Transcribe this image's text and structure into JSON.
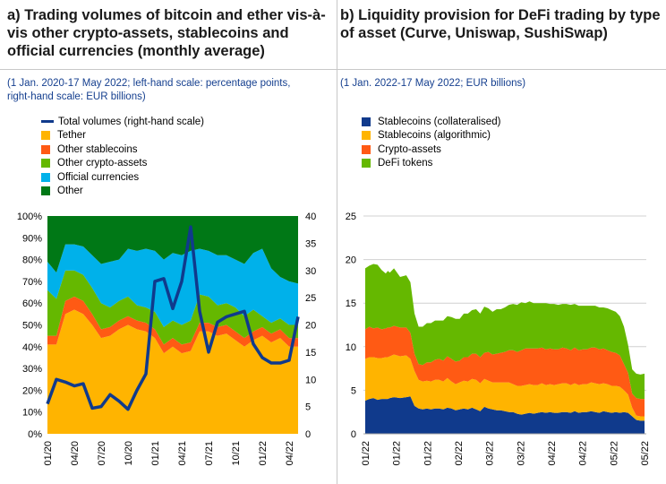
{
  "panels": {
    "a": {
      "title_lines": [
        "a) Trading volumes of bitcoin and ether vis-à-",
        "vis other crypto-assets, stablecoins and",
        "official currencies (monthly average)"
      ],
      "subtitle_lines": [
        "(1 Jan. 2020-17 May 2022; left-hand scale: percentage points,",
        "right-hand scale: EUR billions)"
      ]
    },
    "b": {
      "title_lines": [
        "b) Liquidity provision for DeFi trading by type",
        "of asset (Curve, Uniswap, SushiSwap)"
      ],
      "subtitle_lines": [
        "(1 Jan. 2022-17 May 2022; EUR billions)"
      ]
    }
  },
  "colors": {
    "navy": "#103a8c",
    "tether": "#ffb400",
    "other_stablecoins": "#ff5a14",
    "other_crypto": "#65b800",
    "official": "#00b1ea",
    "other": "#007816",
    "collateralised": "#103a8c",
    "algorithmic": "#ffb400",
    "crypto_assets": "#ff5a14",
    "defi": "#65b800",
    "grid": "#d0d0d0"
  },
  "chart_data": [
    {
      "id": "a",
      "type": "area",
      "stacked": true,
      "title": "a) Trading volumes of bitcoin and ether vis-à-vis other crypto-assets, stablecoins and official currencies (monthly average)",
      "x": [
        "01/20",
        "02/20",
        "03/20",
        "04/20",
        "05/20",
        "06/20",
        "07/20",
        "08/20",
        "09/20",
        "10/20",
        "11/20",
        "12/20",
        "01/21",
        "02/21",
        "03/21",
        "04/21",
        "05/21",
        "06/21",
        "07/21",
        "08/21",
        "09/21",
        "10/21",
        "11/21",
        "12/21",
        "01/22",
        "02/22",
        "03/22",
        "04/22",
        "05/22"
      ],
      "x_tick_labels": [
        "01/20",
        "04/20",
        "07/20",
        "10/20",
        "01/21",
        "04/21",
        "07/21",
        "10/21",
        "01/22",
        "04/22"
      ],
      "y_left": {
        "ylim": [
          0,
          100
        ],
        "ticks": [
          "0%",
          "10%",
          "20%",
          "30%",
          "40%",
          "50%",
          "60%",
          "70%",
          "80%",
          "90%",
          "100%"
        ]
      },
      "y_right": {
        "ylim": [
          0,
          40
        ],
        "ticks": [
          "0",
          "5",
          "10",
          "15",
          "20",
          "25",
          "30",
          "35",
          "40"
        ]
      },
      "series": [
        {
          "name": "Tether",
          "color_key": "tether",
          "values": [
            41,
            41,
            55,
            57,
            55,
            50,
            44,
            45,
            48,
            50,
            48,
            47,
            44,
            37,
            40,
            37,
            38,
            47,
            47,
            45,
            46,
            43,
            40,
            43,
            45,
            42,
            44,
            40,
            40
          ]
        },
        {
          "name": "Other stablecoins",
          "color_key": "other_stablecoins",
          "values": [
            4,
            4,
            6,
            6,
            6,
            5,
            4,
            4,
            4,
            4,
            4,
            4,
            4,
            4,
            4,
            4,
            4,
            4,
            4,
            4,
            4,
            4,
            4,
            4,
            4,
            4,
            4,
            4,
            4
          ]
        },
        {
          "name": "Other crypto-assets",
          "color_key": "other_crypto",
          "values": [
            21,
            17,
            14,
            12,
            12,
            12,
            12,
            9,
            9,
            9,
            7,
            7,
            8,
            8,
            8,
            9,
            10,
            13,
            12,
            10,
            10,
            11,
            10,
            10,
            5,
            5,
            5,
            6,
            6
          ]
        },
        {
          "name": "Official currencies",
          "color_key": "official",
          "values": [
            13,
            12,
            12,
            12,
            13,
            15,
            18,
            21,
            19,
            22,
            25,
            27,
            28,
            31,
            31,
            32,
            32,
            21,
            21,
            23,
            22,
            22,
            24,
            26,
            31,
            25,
            19,
            20,
            19
          ]
        },
        {
          "name": "Other",
          "color_key": "other",
          "values": [
            21,
            26,
            13,
            13,
            14,
            18,
            22,
            21,
            20,
            15,
            16,
            15,
            16,
            20,
            17,
            18,
            16,
            15,
            16,
            18,
            18,
            20,
            22,
            17,
            15,
            24,
            28,
            30,
            31
          ]
        }
      ],
      "line": {
        "name": "Total volumes (right-hand scale)",
        "axis": "right",
        "color_key": "navy",
        "values": [
          5.5,
          10,
          9.5,
          8.8,
          9.2,
          4.7,
          5,
          7.2,
          6,
          4.5,
          8,
          11,
          28,
          28.5,
          23,
          28,
          38,
          22.5,
          15,
          20.5,
          21.5,
          22,
          22.5,
          16.5,
          14,
          13,
          13,
          13.5,
          21.5
        ]
      },
      "legend": [
        "Total volumes (right-hand scale)",
        "Tether",
        "Other stablecoins",
        "Other crypto-assets",
        "Official currencies",
        "Other"
      ]
    },
    {
      "id": "b",
      "type": "area",
      "stacked": true,
      "title": "b) Liquidity provision for DeFi trading by type of asset (Curve, Uniswap, SushiSwap)",
      "x_tick_labels": [
        "01/22",
        "01/22",
        "01/22",
        "02/22",
        "03/22",
        "03/22",
        "04/22",
        "04/22",
        "05/22",
        "05/22"
      ],
      "ylim": [
        0,
        25
      ],
      "y_ticks": [
        "0",
        "5",
        "10",
        "15",
        "20",
        "25"
      ],
      "t": [
        0,
        2,
        4,
        6,
        8,
        10,
        11,
        12,
        14,
        17,
        20,
        22,
        24,
        26,
        28,
        30,
        32,
        34,
        36,
        38,
        40,
        42,
        44,
        46,
        48,
        50,
        52,
        54,
        56,
        58,
        60,
        62,
        64,
        66,
        68,
        70,
        72,
        74,
        76,
        78,
        80,
        82,
        84,
        86,
        88,
        90,
        92,
        94,
        96,
        98,
        100,
        102,
        104,
        106,
        108,
        110,
        112,
        114,
        116,
        118,
        120,
        122,
        124,
        126,
        128,
        130,
        132,
        134,
        136
      ],
      "series": [
        {
          "name": "Stablecoins (collateralised)",
          "color_key": "collateralised",
          "values": [
            3.8,
            4.0,
            4.1,
            3.9,
            4.0,
            4.0,
            4.0,
            4.1,
            4.2,
            4.1,
            4.2,
            4.3,
            3.2,
            2.9,
            2.8,
            2.9,
            2.8,
            2.9,
            2.9,
            2.8,
            3.0,
            2.9,
            2.7,
            2.8,
            2.9,
            2.8,
            3.0,
            2.8,
            2.6,
            3.1,
            2.9,
            2.8,
            2.7,
            2.7,
            2.6,
            2.5,
            2.5,
            2.3,
            2.2,
            2.3,
            2.4,
            2.3,
            2.4,
            2.5,
            2.4,
            2.5,
            2.4,
            2.4,
            2.5,
            2.5,
            2.4,
            2.6,
            2.4,
            2.5,
            2.5,
            2.6,
            2.5,
            2.4,
            2.6,
            2.5,
            2.4,
            2.5,
            2.4,
            2.5,
            2.4,
            2.0,
            1.6,
            1.5,
            1.5
          ]
        },
        {
          "name": "Stablecoins (algorithmic)",
          "color_key": "algorithmic",
          "values": [
            4.8,
            4.8,
            4.7,
            4.8,
            4.7,
            4.8,
            4.8,
            4.8,
            4.9,
            4.8,
            4.8,
            4.3,
            4.0,
            3.3,
            3.2,
            3.2,
            3.2,
            3.3,
            3.3,
            3.2,
            3.4,
            3.1,
            3.0,
            3.1,
            3.2,
            3.2,
            3.3,
            3.4,
            3.2,
            3.2,
            3.2,
            3.1,
            3.2,
            3.2,
            3.3,
            3.4,
            3.2,
            3.2,
            3.3,
            3.3,
            3.3,
            3.3,
            3.2,
            3.3,
            3.2,
            3.2,
            3.2,
            3.3,
            3.3,
            3.3,
            3.2,
            3.2,
            3.2,
            3.2,
            3.2,
            3.3,
            3.3,
            3.3,
            3.2,
            3.2,
            3.1,
            3.0,
            3.0,
            2.5,
            2.1,
            1.0,
            0.5,
            0.5,
            0.5
          ]
        },
        {
          "name": "Crypto-assets",
          "color_key": "crypto_assets",
          "values": [
            3.4,
            3.5,
            3.3,
            3.5,
            3.3,
            3.3,
            3.4,
            3.3,
            3.3,
            3.3,
            3.2,
            3.0,
            2.0,
            1.8,
            1.9,
            2.1,
            2.2,
            2.3,
            2.4,
            2.4,
            2.5,
            2.6,
            2.6,
            2.5,
            2.7,
            2.8,
            2.9,
            3.0,
            3.0,
            3.0,
            3.3,
            3.2,
            3.3,
            3.4,
            3.5,
            3.7,
            3.9,
            3.9,
            4.1,
            4.2,
            4.1,
            4.2,
            4.2,
            4.1,
            4.1,
            4.1,
            4.1,
            4.0,
            4.1,
            4.0,
            4.0,
            4.1,
            4.0,
            4.0,
            4.0,
            4.0,
            4.1,
            4.0,
            4.0,
            3.9,
            3.9,
            3.8,
            3.6,
            3.0,
            2.5,
            1.6,
            2.0,
            2.0,
            2.0
          ]
        },
        {
          "name": "DeFi tokens",
          "color_key": "defi",
          "values": [
            7.0,
            7.0,
            7.4,
            7.2,
            6.8,
            6.3,
            6.5,
            6.3,
            6.6,
            5.8,
            6.0,
            5.8,
            4.6,
            4.3,
            4.4,
            4.5,
            4.5,
            4.5,
            4.4,
            4.6,
            4.6,
            4.8,
            4.9,
            4.8,
            5.0,
            5.0,
            5.0,
            5.1,
            5.0,
            5.3,
            5.0,
            4.9,
            5.1,
            5.0,
            5.1,
            5.2,
            5.3,
            5.4,
            5.5,
            5.2,
            5.4,
            5.2,
            5.2,
            5.1,
            5.3,
            5.1,
            5.2,
            5.1,
            5.0,
            5.1,
            5.2,
            5.0,
            5.1,
            5.0,
            5.0,
            4.8,
            4.8,
            4.8,
            4.7,
            4.8,
            4.8,
            4.7,
            4.5,
            4.3,
            3.2,
            2.8,
            2.8,
            2.8,
            2.9
          ]
        }
      ],
      "legend": [
        "Stablecoins (collateralised)",
        "Stablecoins (algorithmic)",
        "Crypto-assets",
        "DeFi tokens"
      ]
    }
  ]
}
